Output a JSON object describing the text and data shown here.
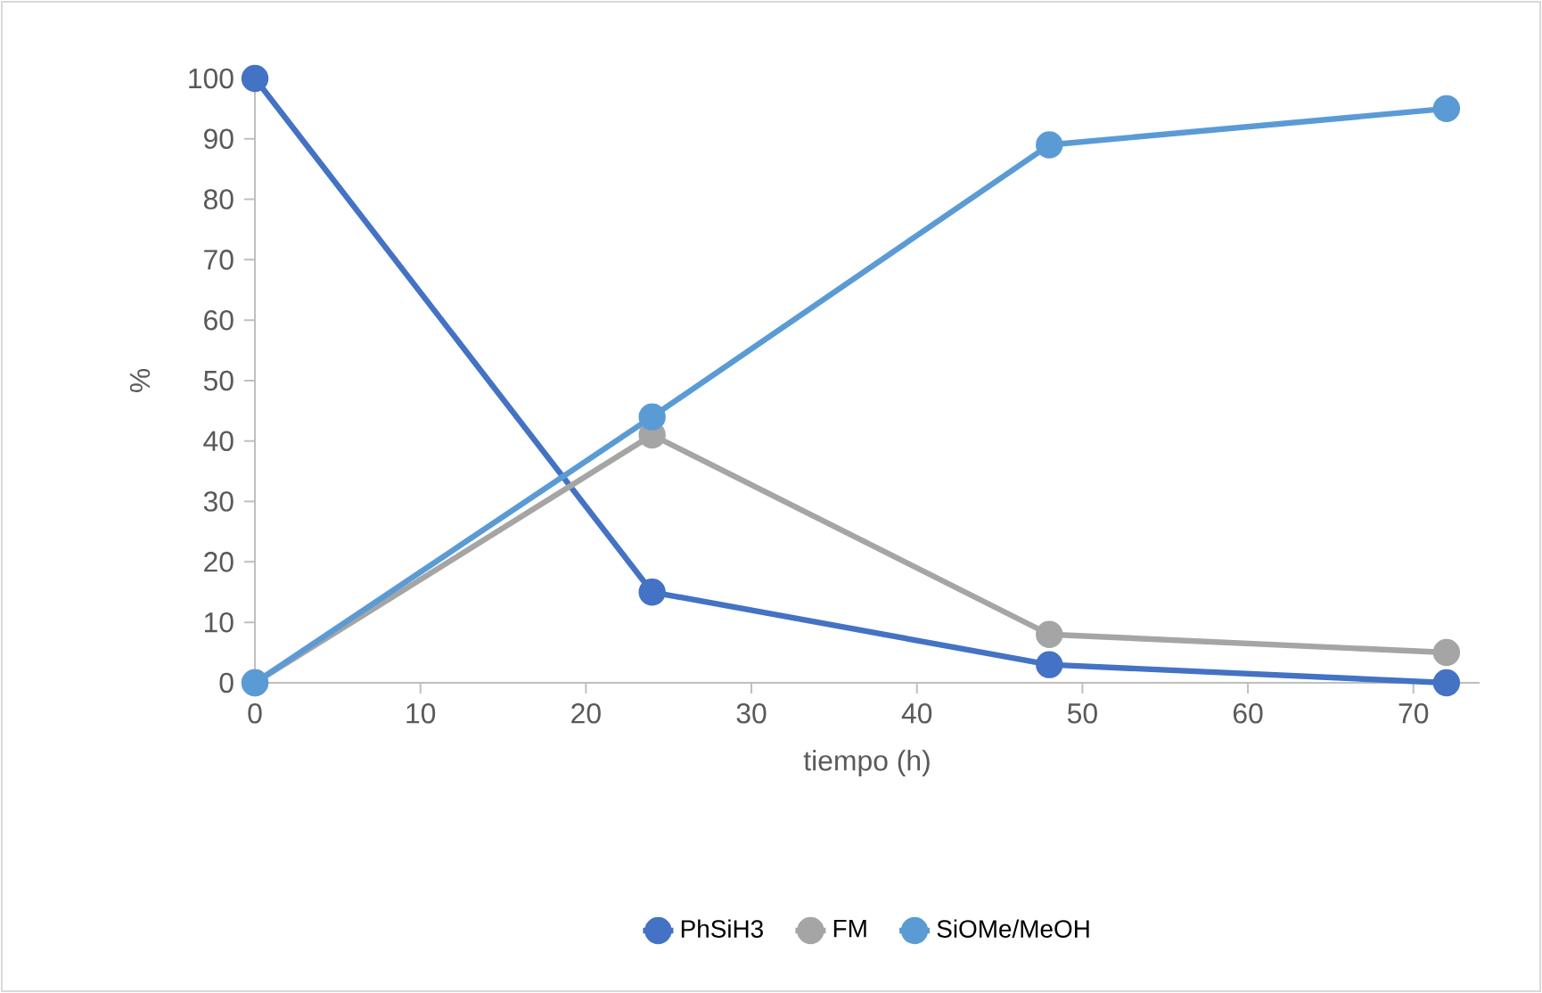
{
  "chart_data": {
    "type": "line",
    "xlabel": "tiempo (h)",
    "ylabel": "%",
    "x": [
      0,
      24,
      48,
      72
    ],
    "series": [
      {
        "name": "PhSiH3",
        "color": "#4472c4",
        "values": [
          100,
          15,
          3,
          0
        ]
      },
      {
        "name": "FM",
        "color": "#a5a5a5",
        "values": [
          0,
          41,
          8,
          5
        ]
      },
      {
        "name": "SiOMe/MeOH",
        "color": "#5b9bd5",
        "values": [
          0,
          44,
          89,
          95
        ]
      }
    ],
    "xlim": [
      0,
      74
    ],
    "ylim": [
      0,
      100
    ],
    "xticks": [
      0,
      10,
      20,
      30,
      40,
      50,
      60,
      70
    ],
    "yticks": [
      0,
      10,
      20,
      30,
      40,
      50,
      60,
      70,
      80,
      90,
      100
    ],
    "grid": false,
    "legend": "bottom",
    "marker": "circle",
    "line_style": "solid"
  }
}
